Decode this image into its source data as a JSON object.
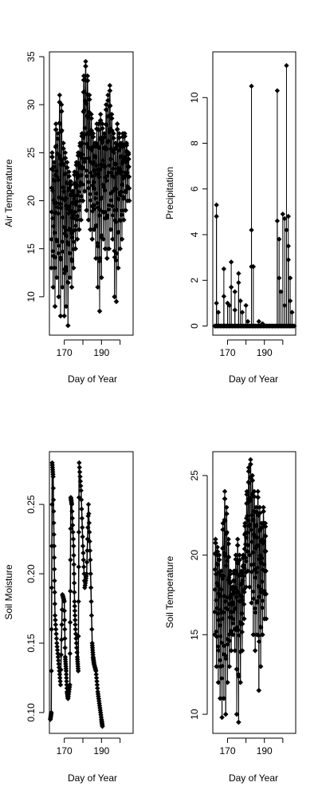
{
  "chart_data": [
    {
      "type": "scatter",
      "xlabel": "Day of Year",
      "ylabel": "Air Temperature",
      "xlim": [
        162,
        207
      ],
      "ylim": [
        6,
        35.5
      ],
      "xticks": [
        170,
        190
      ],
      "yticks": [
        10,
        15,
        20,
        25,
        30,
        35
      ],
      "series": [
        {
          "x": [
            163,
            164,
            165,
            166,
            167,
            168,
            169,
            170,
            171,
            172,
            173,
            174,
            175,
            176,
            177,
            178,
            179,
            180,
            181,
            182,
            183,
            184,
            185,
            186,
            187,
            188,
            189,
            190,
            191,
            192,
            193,
            194,
            195,
            196,
            197,
            198,
            199,
            200,
            201,
            202,
            203,
            204
          ],
          "ymin": [
            13,
            11,
            9,
            12,
            10,
            8,
            11,
            8,
            9,
            7,
            12,
            11,
            13,
            15,
            16,
            17,
            18,
            20,
            21,
            19,
            18,
            17,
            16,
            17,
            14,
            11,
            8.5,
            12,
            16,
            15,
            14,
            15,
            17,
            16,
            10,
            9.5,
            13,
            15,
            16,
            18,
            19,
            20
          ],
          "ymax": [
            25,
            24,
            28,
            27,
            31,
            30,
            26,
            25,
            24,
            23,
            22,
            21,
            23,
            24,
            25,
            26,
            27,
            33,
            34.5,
            33,
            31,
            29,
            27,
            26,
            28,
            28,
            29,
            28,
            27,
            30,
            31,
            32,
            29,
            27,
            26,
            28,
            27,
            26,
            27,
            27,
            26,
            25
          ]
        }
      ]
    },
    {
      "type": "scatter",
      "xlabel": "Day of Year",
      "ylabel": "Precipitation",
      "xlim": [
        162,
        207
      ],
      "ylim": [
        -0.4,
        12
      ],
      "xticks": [
        170,
        190
      ],
      "yticks": [
        0,
        2,
        4,
        6,
        8,
        10
      ],
      "series": [
        {
          "spikes": [
            [
              164,
              5.3
            ],
            [
              164,
              4.8
            ],
            [
              164,
              1.0
            ],
            [
              165,
              0.6
            ],
            [
              168,
              2.5
            ],
            [
              168,
              1.3
            ],
            [
              170,
              1.0
            ],
            [
              171,
              0.9
            ],
            [
              172,
              1.7
            ],
            [
              172,
              2.8
            ],
            [
              174,
              1.5
            ],
            [
              174,
              0.7
            ],
            [
              176,
              2.3
            ],
            [
              176,
              1.9
            ],
            [
              177,
              1.1
            ],
            [
              178,
              0.6
            ],
            [
              180,
              0.9
            ],
            [
              181,
              0.2
            ],
            [
              183,
              10.5
            ],
            [
              183,
              4.2
            ],
            [
              183,
              2.6
            ],
            [
              184,
              2.6
            ],
            [
              187,
              0.2
            ],
            [
              189,
              0.1
            ],
            [
              197,
              10.3
            ],
            [
              197,
              4.6
            ],
            [
              198,
              3.8
            ],
            [
              198,
              2.1
            ],
            [
              199,
              1.5
            ],
            [
              200,
              4.9
            ],
            [
              201,
              4.7
            ],
            [
              201,
              0.9
            ],
            [
              202,
              11.4
            ],
            [
              202,
              4.2
            ],
            [
              203,
              4.8
            ],
            [
              203,
              2.9
            ],
            [
              203,
              3.5
            ],
            [
              204,
              2.1
            ],
            [
              204,
              1.1
            ],
            [
              205,
              0.6
            ]
          ],
          "baseline": 0
        }
      ]
    },
    {
      "type": "line",
      "xlabel": "Day of Year",
      "ylabel": "Soil Moisture",
      "xlim": [
        162,
        207
      ],
      "ylim": [
        0.085,
        0.288
      ],
      "xticks": [
        170,
        190
      ],
      "yticks": [
        0.1,
        0.15,
        0.2,
        0.25
      ],
      "series": [
        {
          "x": [
            162.5,
            163,
            163.5,
            164,
            164.5,
            165,
            166,
            167,
            168,
            169,
            170,
            170.5,
            171,
            171.5,
            172,
            173,
            173.5,
            174,
            175,
            175.5,
            176,
            177,
            177.5,
            178,
            179,
            180,
            181,
            182,
            183,
            184,
            185,
            185.5,
            186,
            187,
            188,
            189,
            190,
            190.5
          ],
          "y": [
            0.095,
            0.1,
            0.28,
            0.27,
            0.22,
            0.17,
            0.15,
            0.135,
            0.12,
            0.185,
            0.18,
            0.14,
            0.13,
            0.115,
            0.11,
            0.12,
            0.255,
            0.25,
            0.22,
            0.18,
            0.16,
            0.14,
            0.13,
            0.28,
            0.26,
            0.22,
            0.19,
            0.2,
            0.25,
            0.21,
            0.15,
            0.14,
            0.135,
            0.13,
            0.115,
            0.105,
            0.095,
            0.09
          ]
        }
      ]
    },
    {
      "type": "scatter",
      "xlabel": "Day of Year",
      "ylabel": "Soil Temperature",
      "xlim": [
        162,
        207
      ],
      "ylim": [
        8.8,
        26.5
      ],
      "xticks": [
        170,
        190
      ],
      "yticks": [
        10,
        15,
        20,
        25
      ],
      "series": [
        {
          "x": [
            163,
            164,
            165,
            166,
            167,
            168,
            169,
            170,
            171,
            172,
            173,
            174,
            175,
            176,
            177,
            178,
            179,
            180,
            181,
            182,
            183,
            184,
            185,
            186,
            187,
            188,
            189,
            190
          ],
          "ymin": [
            15,
            13,
            12,
            11,
            9.8,
            11,
            10,
            12,
            13,
            14,
            15,
            14,
            10,
            9.5,
            12,
            14,
            16,
            18,
            19,
            18,
            17,
            15,
            14,
            15,
            11.5,
            13,
            15,
            16
          ],
          "ymax": [
            21,
            20.5,
            20,
            19,
            22,
            24,
            23,
            21,
            19,
            18,
            19,
            20,
            21,
            20,
            19,
            20,
            22,
            24,
            25.5,
            26,
            25,
            24,
            23,
            24,
            23,
            22,
            23,
            22
          ]
        }
      ]
    }
  ]
}
